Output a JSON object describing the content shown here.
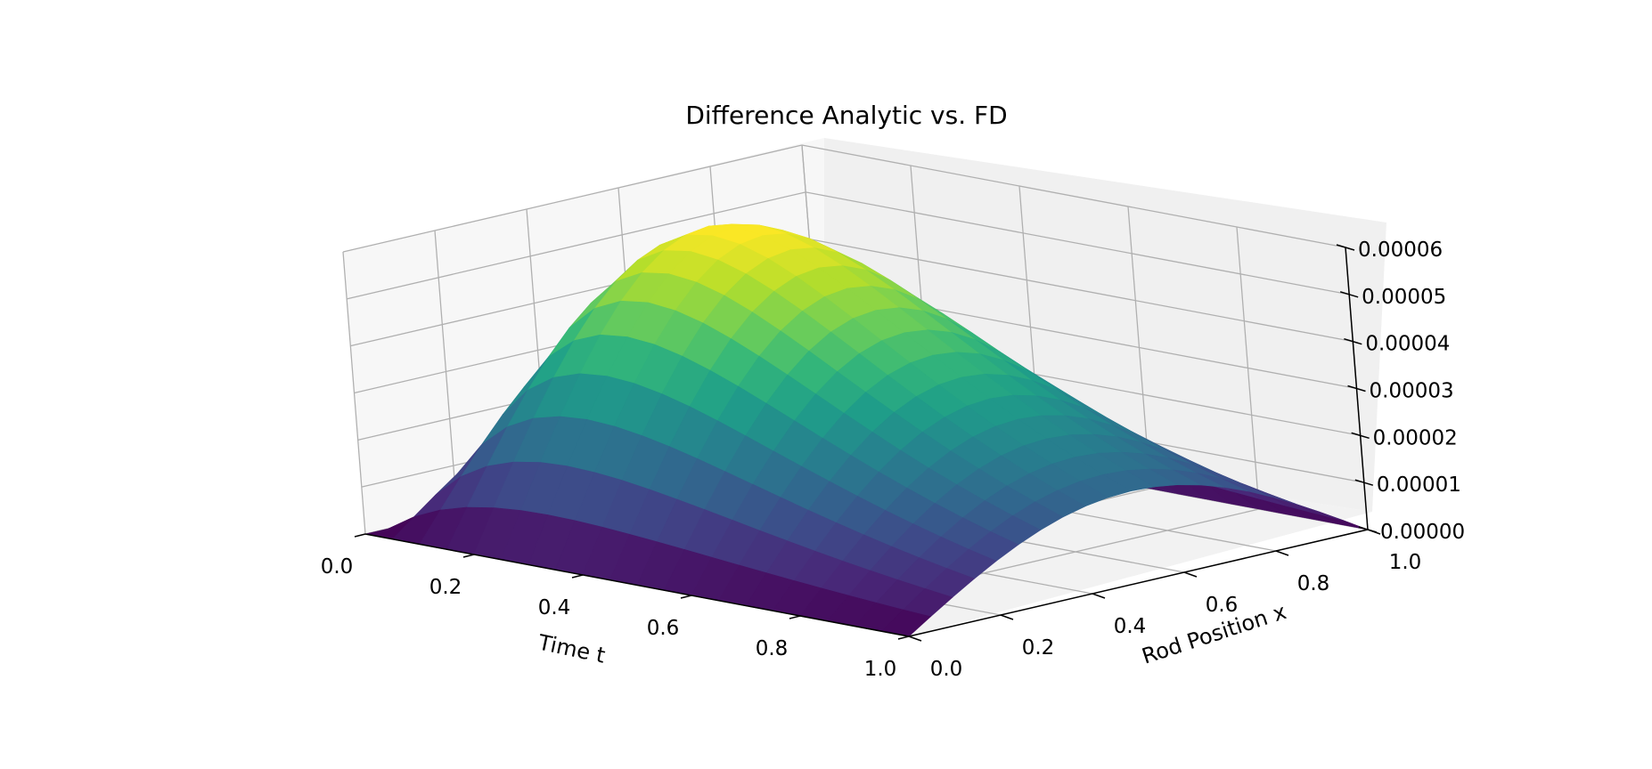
{
  "chart_data": {
    "type": "surface3d",
    "title": "Difference Analytic vs. FD",
    "xlabel": "Time t",
    "ylabel": "Rod Position x",
    "zlabel": "",
    "xlim": [
      0,
      1
    ],
    "ylim": [
      0,
      1
    ],
    "zlim": [
      0,
      6e-05
    ],
    "x_ticks": [
      "0.0",
      "0.2",
      "0.4",
      "0.6",
      "0.8",
      "1.0"
    ],
    "y_ticks": [
      "0.0",
      "0.2",
      "0.4",
      "0.6",
      "0.8",
      "1.0"
    ],
    "z_ticks": [
      "0.00000",
      "0.00001",
      "0.00002",
      "0.00003",
      "0.00004",
      "0.00005",
      "0.00006"
    ],
    "colormap": "viridis",
    "colormap_stops": [
      "#440154",
      "#482878",
      "#3e4989",
      "#31688e",
      "#26828e",
      "#1f9e89",
      "#35b779",
      "#6ece58",
      "#b5de2b",
      "#fde725"
    ],
    "grid": true,
    "pane_colors": {
      "floor": "#f2f2f2",
      "back": "#f0f0f0",
      "side": "#f7f7f7",
      "grid": "#b0b0b0"
    },
    "surface_model": {
      "description_of_values": "difference u(t,x) peaks near t=0.3, x=0.5 at about 0.00006, decaying in time and vanishing at x=0 and x=1",
      "peak_value": 6.05e-05,
      "grid_t": [
        0.0,
        0.05,
        0.1,
        0.15,
        0.2,
        0.25,
        0.3,
        0.35,
        0.4,
        0.45,
        0.5,
        0.55,
        0.6,
        0.65,
        0.7,
        0.75,
        0.8,
        0.85,
        0.9,
        0.95,
        1.0
      ],
      "grid_x": [
        0.0,
        0.05,
        0.1,
        0.15,
        0.2,
        0.25,
        0.3,
        0.35,
        0.4,
        0.45,
        0.5,
        0.55,
        0.6,
        0.65,
        0.7,
        0.75,
        0.8,
        0.85,
        0.9,
        0.95,
        1.0
      ],
      "profile_in_x": "sin(pi*x)",
      "profile_in_t": "t*exp(-t/0.3)/(0.3*exp(-1))"
    }
  }
}
